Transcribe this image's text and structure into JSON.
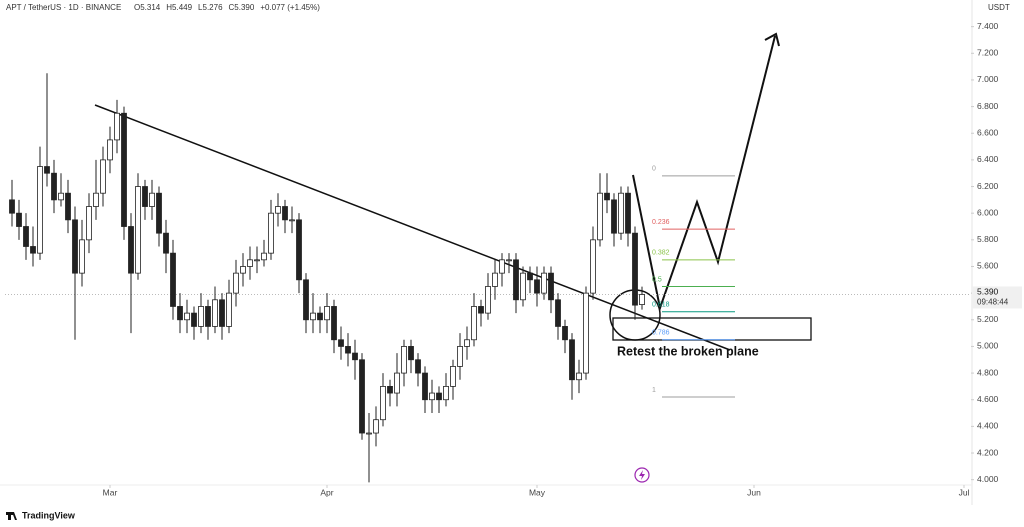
{
  "header": {
    "symbol": "APT / TetherUS · 1D · BINANCE",
    "ohlc": [
      "O5.314",
      "H5.449",
      "L5.276",
      "C5.390",
      "+0.077 (+1.45%)"
    ],
    "currency": "USDT"
  },
  "chart_data": {
    "type": "candlestick",
    "open": [
      6.1,
      6.0,
      5.9,
      5.75,
      5.7,
      6.35,
      6.3,
      6.1,
      6.15,
      5.95,
      5.55,
      5.8,
      6.05,
      6.15,
      6.4,
      6.55,
      6.75,
      5.9,
      5.55,
      6.2,
      6.05,
      6.15,
      5.85,
      5.7,
      5.3,
      5.2,
      5.25,
      5.15,
      5.3,
      5.15,
      5.35,
      5.15,
      5.4,
      5.55,
      5.6,
      5.65,
      5.65,
      5.7,
      6.0,
      6.05,
      5.95,
      5.95,
      5.5,
      5.2,
      5.25,
      5.2,
      5.3,
      5.05,
      5.0,
      4.95,
      4.9,
      4.35,
      4.35,
      4.45,
      4.7,
      4.65,
      4.8,
      5.0,
      4.9,
      4.8,
      4.6,
      4.65,
      4.6,
      4.7,
      4.85,
      5.0,
      5.05,
      5.3,
      5.25,
      5.45,
      5.55,
      5.65,
      5.65,
      5.35,
      5.55,
      5.5,
      5.4,
      5.55,
      5.35,
      5.15,
      5.05,
      4.75,
      4.8,
      5.4,
      5.8,
      6.15,
      6.1,
      5.85,
      6.15,
      5.85,
      5.314
    ],
    "high": [
      6.25,
      6.1,
      6.0,
      5.9,
      6.5,
      7.05,
      6.4,
      6.3,
      6.25,
      6.05,
      5.95,
      6.15,
      6.4,
      6.5,
      6.65,
      6.85,
      6.8,
      6.0,
      6.3,
      6.25,
      6.25,
      6.2,
      5.95,
      5.8,
      5.4,
      5.35,
      5.3,
      5.4,
      5.35,
      5.45,
      5.4,
      5.5,
      5.65,
      5.7,
      5.75,
      5.75,
      5.8,
      6.1,
      6.15,
      6.1,
      6.05,
      6.0,
      5.55,
      5.4,
      5.3,
      5.4,
      5.35,
      5.15,
      5.1,
      5.05,
      4.95,
      4.5,
      4.55,
      4.8,
      4.75,
      4.95,
      5.05,
      5.05,
      4.95,
      4.85,
      4.75,
      4.7,
      4.8,
      4.9,
      5.1,
      5.15,
      5.4,
      5.35,
      5.55,
      5.65,
      5.7,
      5.7,
      5.7,
      5.6,
      5.6,
      5.6,
      5.6,
      5.6,
      5.4,
      5.2,
      5.1,
      4.9,
      5.45,
      5.9,
      6.3,
      6.3,
      6.15,
      6.2,
      6.2,
      5.9,
      5.449
    ],
    "low": [
      5.9,
      5.8,
      5.65,
      5.6,
      5.65,
      6.2,
      6.0,
      6.05,
      5.85,
      5.05,
      5.45,
      5.7,
      5.95,
      6.05,
      6.3,
      6.45,
      5.8,
      5.1,
      5.5,
      5.95,
      5.95,
      5.75,
      5.55,
      5.2,
      5.1,
      5.1,
      5.05,
      5.1,
      5.05,
      5.1,
      5.05,
      5.1,
      5.3,
      5.45,
      5.5,
      5.55,
      5.6,
      5.65,
      5.9,
      5.85,
      5.85,
      5.4,
      5.1,
      5.1,
      5.1,
      5.1,
      4.95,
      4.9,
      4.85,
      4.75,
      4.3,
      3.98,
      4.25,
      4.4,
      4.55,
      4.55,
      4.7,
      4.8,
      4.7,
      4.5,
      4.5,
      4.5,
      4.55,
      4.6,
      4.75,
      4.9,
      5.0,
      5.15,
      5.2,
      5.35,
      5.45,
      5.55,
      5.25,
      5.3,
      5.4,
      5.3,
      5.35,
      5.25,
      5.05,
      4.95,
      4.6,
      4.65,
      4.75,
      5.35,
      5.75,
      6.0,
      5.75,
      5.8,
      5.75,
      5.2,
      5.276
    ],
    "close": [
      6.0,
      5.9,
      5.75,
      5.7,
      6.35,
      6.3,
      6.1,
      6.15,
      5.95,
      5.55,
      5.8,
      6.05,
      6.15,
      6.4,
      6.55,
      6.75,
      5.9,
      5.55,
      6.2,
      6.05,
      6.15,
      5.85,
      5.7,
      5.3,
      5.2,
      5.25,
      5.15,
      5.3,
      5.15,
      5.35,
      5.15,
      5.4,
      5.55,
      5.6,
      5.65,
      5.65,
      5.7,
      6.0,
      6.05,
      5.95,
      5.95,
      5.5,
      5.2,
      5.25,
      5.2,
      5.3,
      5.05,
      5.0,
      4.95,
      4.9,
      4.35,
      4.35,
      4.45,
      4.7,
      4.65,
      4.8,
      5.0,
      4.9,
      4.8,
      4.6,
      4.65,
      4.6,
      4.7,
      4.85,
      5.0,
      5.05,
      5.3,
      5.25,
      5.45,
      5.55,
      5.65,
      5.65,
      5.35,
      5.55,
      5.5,
      5.4,
      5.55,
      5.35,
      5.15,
      5.05,
      4.75,
      4.8,
      5.4,
      5.8,
      6.15,
      6.1,
      5.85,
      6.15,
      5.85,
      5.31,
      5.39
    ],
    "xlim": [
      -1,
      137
    ],
    "xticks": [
      {
        "value": 14,
        "label": "Mar"
      },
      {
        "value": 45,
        "label": "Apr"
      },
      {
        "value": 75,
        "label": "May"
      },
      {
        "value": 106,
        "label": "Jun"
      },
      {
        "value": 136,
        "label": "Jul"
      }
    ],
    "ylim": [
      3.96,
      7.6
    ],
    "yticks": [
      {
        "value": 4,
        "label": "4.000"
      },
      {
        "value": 4.2,
        "label": "4.200"
      },
      {
        "value": 4.4,
        "label": "4.400"
      },
      {
        "value": 4.6,
        "label": "4.600"
      },
      {
        "value": 4.8,
        "label": "4.800"
      },
      {
        "value": 5,
        "label": "5.000"
      },
      {
        "value": 5.2,
        "label": "5.200"
      },
      {
        "value": 5.4,
        "label": "5.400"
      },
      {
        "value": 5.6,
        "label": "5.600"
      },
      {
        "value": 5.8,
        "label": "5.800"
      },
      {
        "value": 6,
        "label": "6.000"
      },
      {
        "value": 6.2,
        "label": "6.200"
      },
      {
        "value": 6.4,
        "label": "6.400"
      },
      {
        "value": 6.6,
        "label": "6.600"
      },
      {
        "value": 6.8,
        "label": "6.800"
      },
      {
        "value": 7,
        "label": "7.000"
      },
      {
        "value": 7.2,
        "label": "7.200"
      },
      {
        "value": 7.4,
        "label": "7.400"
      }
    ],
    "last_price": {
      "value": 5.39,
      "label": "5.390"
    },
    "countdown": "09:48:44",
    "up_color": "#ffffff",
    "down_color": "#222222",
    "fib_levels": [
      {
        "value": 6.28,
        "label": "0",
        "color": "#9e9e9e"
      },
      {
        "value": 5.88,
        "label": "0.236",
        "color": "#e06060"
      },
      {
        "value": 5.65,
        "label": "0.382",
        "color": "#8bc34a"
      },
      {
        "value": 5.45,
        "label": "0.5",
        "color": "#4caf50"
      },
      {
        "value": 5.26,
        "label": "0.618",
        "color": "#089981"
      },
      {
        "value": 5.05,
        "label": "0.786",
        "color": "#5b9cf6"
      },
      {
        "value": 4.62,
        "label": "1",
        "color": "#9e9e9e"
      }
    ],
    "annotation": "Retest the broken plane"
  },
  "footer": {
    "brand": "TradingView"
  }
}
